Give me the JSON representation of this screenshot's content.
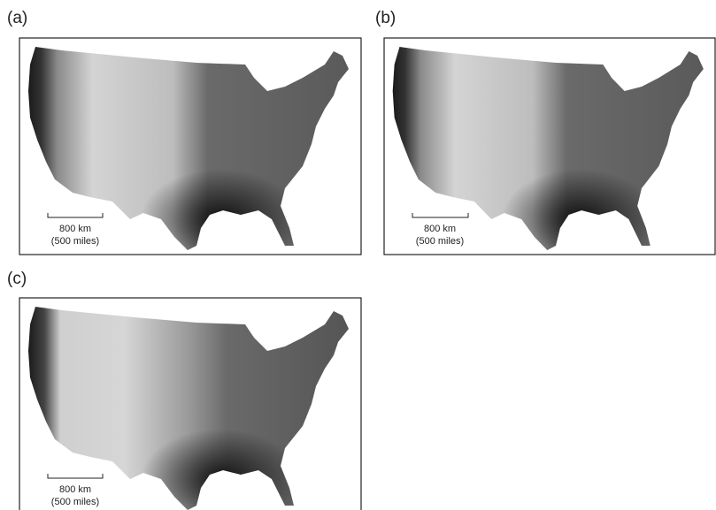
{
  "panels": [
    {
      "label": "(a)",
      "scale_km": "800 km",
      "scale_miles": "(500 miles)"
    },
    {
      "label": "(b)",
      "scale_km": "800 km",
      "scale_miles": "(500 miles)"
    },
    {
      "label": "(c)",
      "scale_km": "800 km",
      "scale_miles": "(500 miles)"
    }
  ]
}
